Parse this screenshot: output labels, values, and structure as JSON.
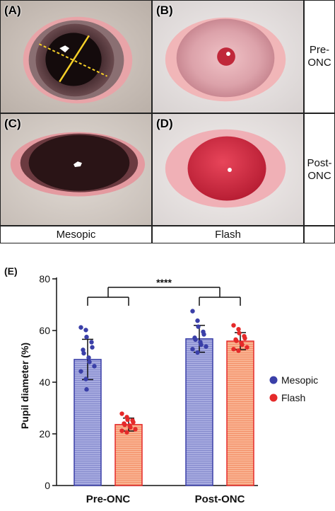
{
  "panels": {
    "a_label": "(A)",
    "b_label": "(B)",
    "c_label": "(C)",
    "d_label": "(D)",
    "e_label": "(E)"
  },
  "row_labels": {
    "pre_line1": "Pre-",
    "pre_line2": "ONC",
    "post_line1": "Post-",
    "post_line2": "ONC"
  },
  "column_labels": {
    "mesopic": "Mesopic",
    "flash": "Flash"
  },
  "significance": "****",
  "colors": {
    "mesopic": "#3a3fa8",
    "mesopic_bar": "#9b9fd8",
    "flash": "#e52a2a",
    "flash_bar": "#f7a07c"
  },
  "chart_data": {
    "type": "bar",
    "title": "",
    "ylabel": "Pupil diameter (%)",
    "xlabel": "",
    "ylim": [
      0,
      80
    ],
    "yticks": [
      0,
      20,
      40,
      60,
      80
    ],
    "grid": false,
    "legend_position": "right",
    "categories": [
      "Pre-ONC",
      "Post-ONC"
    ],
    "series": [
      {
        "name": "Mesopic",
        "values": [
          48.8,
          56.8
        ],
        "sd": [
          7.8,
          5.2
        ],
        "points": [
          [
            61.2,
            60.2,
            57.5,
            55.5,
            53.5,
            52.5,
            51.2,
            49.5,
            47.8,
            46.2,
            44.2,
            41.2,
            37.2
          ],
          [
            67.5,
            63.8,
            61.5,
            59.5,
            58.5,
            57.2,
            56.5,
            55.5,
            54.5,
            53.8,
            52.8,
            51.5
          ]
        ]
      },
      {
        "name": "Flash",
        "values": [
          23.6,
          55.9
        ],
        "sd": [
          2.5,
          3.3
        ],
        "points": [
          [
            27.8,
            26.5,
            25.5,
            25.2,
            24.5,
            24.0,
            23.5,
            23.2,
            22.5,
            21.8,
            21.2,
            20.6
          ],
          [
            62.0,
            60.5,
            59.0,
            57.8,
            57.0,
            56.5,
            56.0,
            55.2,
            54.5,
            53.5,
            52.8,
            52.2
          ]
        ]
      }
    ]
  }
}
